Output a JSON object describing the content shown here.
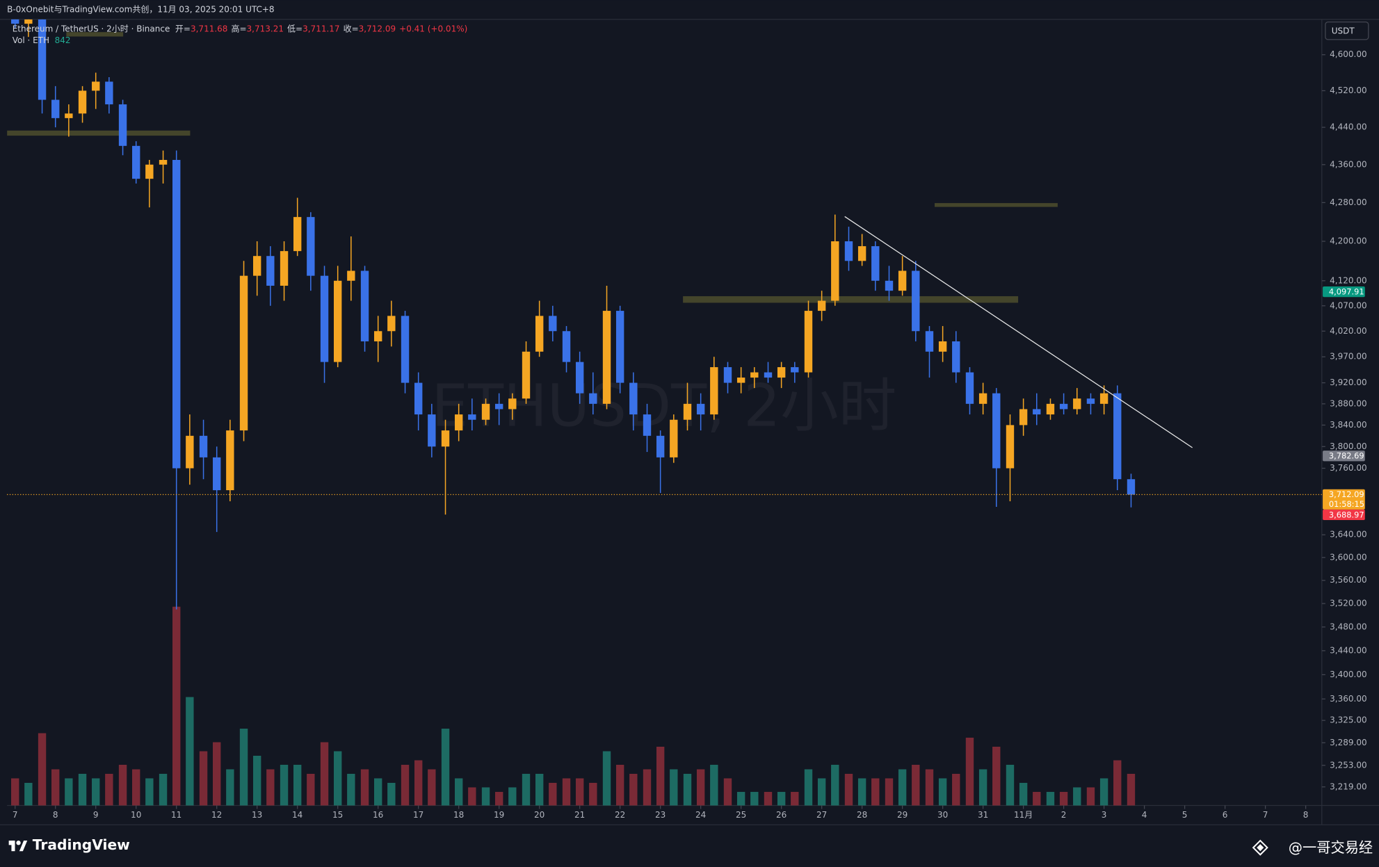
{
  "chart_data": {
    "type": "candlestick",
    "caption": "B-0xOnebit与TradingView.com共创，11月 03, 2025 20:01 UTC+8",
    "title": "Ethereum / TetherUS · 2小时 · Binance",
    "fields": [
      {
        "name": "开=",
        "value": {
          "value": 3711.68,
          "label": "3,711.68"
        }
      },
      {
        "name": "高=",
        "value": {
          "value": 3713.21,
          "label": "3,713.21"
        }
      },
      {
        "name": "低=",
        "value": {
          "value": 3711.17,
          "label": "3,711.17"
        }
      },
      {
        "name": "收=",
        "value": {
          "value": 3712.09,
          "label": "3,712.09"
        }
      }
    ],
    "change": "+0.41 (+0.01%)",
    "volume_title": "Vol · ETH",
    "volume_last": 842,
    "watermark": "ETHUSDT, 2小时",
    "unit": "USDT",
    "log_scale": true,
    "up_color": "#f5a623",
    "down_color": "#3a72e8",
    "volume_up_color": "#1d6b63",
    "volume_down_color": "#7a2a36",
    "xlim": [
      -0.2,
      32.4
    ],
    "ylim": [
      3190,
      4680
    ],
    "xticks": [
      {
        "value": 0,
        "label": "7"
      },
      {
        "value": 1,
        "label": "8"
      },
      {
        "value": 2,
        "label": "9"
      },
      {
        "value": 3,
        "label": "10"
      },
      {
        "value": 4,
        "label": "11"
      },
      {
        "value": 5,
        "label": "12"
      },
      {
        "value": 6,
        "label": "13"
      },
      {
        "value": 7,
        "label": "14"
      },
      {
        "value": 8,
        "label": "15"
      },
      {
        "value": 9,
        "label": "16"
      },
      {
        "value": 10,
        "label": "17"
      },
      {
        "value": 11,
        "label": "18"
      },
      {
        "value": 12,
        "label": "19"
      },
      {
        "value": 13,
        "label": "20"
      },
      {
        "value": 14,
        "label": "21"
      },
      {
        "value": 15,
        "label": "22"
      },
      {
        "value": 16,
        "label": "23"
      },
      {
        "value": 17,
        "label": "24"
      },
      {
        "value": 18,
        "label": "25"
      },
      {
        "value": 19,
        "label": "26"
      },
      {
        "value": 20,
        "label": "27"
      },
      {
        "value": 21,
        "label": "28"
      },
      {
        "value": 22,
        "label": "29"
      },
      {
        "value": 23,
        "label": "30"
      },
      {
        "value": 24,
        "label": "31"
      },
      {
        "value": 25,
        "label": "11月"
      },
      {
        "value": 26,
        "label": "2"
      },
      {
        "value": 27,
        "label": "3"
      },
      {
        "value": 28,
        "label": "4"
      },
      {
        "value": 29,
        "label": "5"
      },
      {
        "value": 30,
        "label": "6"
      },
      {
        "value": 31,
        "label": "7"
      },
      {
        "value": 32,
        "label": "8"
      }
    ],
    "yticks": [
      {
        "value": 4600,
        "label": "4,600.00"
      },
      {
        "value": 4520,
        "label": "4,520.00"
      },
      {
        "value": 4440,
        "label": "4,440.00"
      },
      {
        "value": 4360,
        "label": "4,360.00"
      },
      {
        "value": 4280,
        "label": "4,280.00"
      },
      {
        "value": 4200,
        "label": "4,200.00"
      },
      {
        "value": 4120,
        "label": "4,120.00"
      },
      {
        "value": 4070,
        "label": "4,070.00"
      },
      {
        "value": 4020,
        "label": "4,020.00"
      },
      {
        "value": 3970,
        "label": "3,970.00"
      },
      {
        "value": 3920,
        "label": "3,920.00"
      },
      {
        "value": 3880,
        "label": "3,880.00"
      },
      {
        "value": 3840,
        "label": "3,840.00"
      },
      {
        "value": 3800,
        "label": "3,800.00"
      },
      {
        "value": 3760,
        "label": "3,760.00"
      },
      {
        "value": 3640,
        "label": "3,640.00"
      },
      {
        "value": 3600,
        "label": "3,600.00"
      },
      {
        "value": 3560,
        "label": "3,560.00"
      },
      {
        "value": 3520,
        "label": "3,520.00"
      },
      {
        "value": 3480,
        "label": "3,480.00"
      },
      {
        "value": 3440,
        "label": "3,440.00"
      },
      {
        "value": 3400,
        "label": "3,400.00"
      },
      {
        "value": 3360,
        "label": "3,360.00"
      },
      {
        "value": 3325,
        "label": "3,325.00"
      },
      {
        "value": 3289,
        "label": "3,289.00"
      },
      {
        "value": 3253,
        "label": "3,253.00"
      },
      {
        "value": 3219,
        "label": "3,219.00"
      }
    ],
    "x": [
      0,
      0.33,
      0.67,
      1,
      1.33,
      1.67,
      2,
      2.33,
      2.67,
      3,
      3.33,
      3.67,
      4,
      4.33,
      4.67,
      5,
      5.33,
      5.67,
      6,
      6.33,
      6.67,
      7,
      7.33,
      7.67,
      8,
      8.33,
      8.67,
      9,
      9.33,
      9.67,
      10,
      10.33,
      10.67,
      11,
      11.33,
      11.67,
      12,
      12.33,
      12.67,
      13,
      13.33,
      13.67,
      14,
      14.33,
      14.67,
      15,
      15.33,
      15.67,
      16,
      16.33,
      16.67,
      17,
      17.33,
      17.67,
      18,
      18.33,
      18.67,
      19,
      19.33,
      19.67,
      20,
      20.33,
      20.67,
      21,
      21.33,
      21.67,
      22,
      22.33,
      22.67,
      23,
      23.33,
      23.67,
      24,
      24.33,
      24.67,
      25,
      25.33,
      25.67,
      26,
      26.33,
      26.67,
      27,
      27.33,
      27.67
    ],
    "open": [
      4690,
      4670,
      4680,
      4500,
      4460,
      4470,
      4520,
      4540,
      4490,
      4400,
      4330,
      4360,
      4370,
      3760,
      3820,
      3780,
      3720,
      3830,
      4130,
      4170,
      4110,
      4180,
      4250,
      4130,
      3960,
      4120,
      4140,
      4000,
      4020,
      4050,
      3920,
      3860,
      3800,
      3830,
      3860,
      3850,
      3880,
      3870,
      3890,
      3980,
      4050,
      4020,
      3960,
      3900,
      3880,
      4060,
      3920,
      3860,
      3820,
      3780,
      3850,
      3880,
      3860,
      3950,
      3920,
      3930,
      3940,
      3930,
      3950,
      3940,
      4060,
      4080,
      4200,
      4160,
      4190,
      4120,
      4100,
      4140,
      4020,
      3980,
      4000,
      3940,
      3880,
      3900,
      3760,
      3840,
      3870,
      3860,
      3880,
      3870,
      3890,
      3880,
      3900,
      3740
    ],
    "high": [
      4720,
      4700,
      4690,
      4530,
      4490,
      4530,
      4560,
      4550,
      4500,
      4410,
      4370,
      4390,
      4390,
      3860,
      3850,
      3800,
      3850,
      4160,
      4200,
      4190,
      4200,
      4290,
      4260,
      4150,
      4150,
      4210,
      4150,
      4050,
      4080,
      4060,
      3940,
      3880,
      3850,
      3880,
      3890,
      3890,
      3900,
      3900,
      4000,
      4080,
      4070,
      4030,
      3980,
      3940,
      4110,
      4070,
      3940,
      3880,
      3830,
      3860,
      3920,
      3900,
      3970,
      3960,
      3950,
      3950,
      3960,
      3960,
      3960,
      4080,
      4100,
      4255,
      4230,
      4215,
      4200,
      4150,
      4170,
      4160,
      4030,
      4030,
      4020,
      3950,
      3920,
      3910,
      3860,
      3890,
      3900,
      3890,
      3900,
      3910,
      3900,
      3915,
      3915,
      3750
    ],
    "low": [
      4660,
      4640,
      4470,
      4440,
      4420,
      4450,
      4480,
      4470,
      4380,
      4320,
      4270,
      4320,
      3510,
      3730,
      3740,
      3645,
      3700,
      3810,
      4090,
      4070,
      4080,
      4170,
      4100,
      3920,
      3950,
      4080,
      3980,
      3960,
      3990,
      3900,
      3830,
      3780,
      3676,
      3810,
      3830,
      3840,
      3840,
      3850,
      3880,
      3970,
      4000,
      3940,
      3880,
      3860,
      3870,
      3900,
      3830,
      3790,
      3715,
      3770,
      3830,
      3830,
      3850,
      3900,
      3900,
      3910,
      3920,
      3910,
      3920,
      3930,
      4040,
      4070,
      4140,
      4150,
      4100,
      4080,
      4090,
      4000,
      3930,
      3960,
      3920,
      3860,
      3860,
      3690,
      3700,
      3820,
      3840,
      3850,
      3860,
      3860,
      3860,
      3860,
      3720,
      3688.97
    ],
    "close": [
      4670,
      4680,
      4500,
      4460,
      4470,
      4520,
      4540,
      4490,
      4400,
      4330,
      4360,
      4370,
      3760,
      3820,
      3780,
      3720,
      3830,
      4130,
      4170,
      4110,
      4180,
      4250,
      4130,
      3960,
      4120,
      4140,
      4000,
      4020,
      4050,
      3920,
      3860,
      3800,
      3830,
      3860,
      3850,
      3880,
      3870,
      3890,
      3980,
      4050,
      4020,
      3960,
      3900,
      3880,
      4060,
      3920,
      3860,
      3820,
      3780,
      3850,
      3880,
      3860,
      3950,
      3920,
      3930,
      3940,
      3930,
      3950,
      3940,
      4060,
      4080,
      4200,
      4160,
      4190,
      4120,
      4100,
      4140,
      4020,
      3980,
      4000,
      3940,
      3880,
      3900,
      3760,
      3840,
      3870,
      3860,
      3880,
      3870,
      3890,
      3880,
      3900,
      3740,
      3712.09
    ],
    "volume": [
      30000,
      25000,
      80000,
      40000,
      30000,
      35000,
      30000,
      35000,
      45000,
      40000,
      30000,
      35000,
      220000,
      120000,
      60000,
      70000,
      40000,
      85000,
      55000,
      40000,
      45000,
      45000,
      35000,
      70000,
      60000,
      35000,
      40000,
      30000,
      25000,
      45000,
      50000,
      40000,
      85000,
      30000,
      20000,
      20000,
      15000,
      20000,
      35000,
      35000,
      25000,
      30000,
      30000,
      25000,
      60000,
      45000,
      35000,
      40000,
      65000,
      40000,
      35000,
      40000,
      45000,
      30000,
      15000,
      15000,
      15000,
      15000,
      15000,
      40000,
      30000,
      45000,
      35000,
      30000,
      30000,
      30000,
      40000,
      45000,
      40000,
      30000,
      35000,
      75000,
      40000,
      65000,
      45000,
      25000,
      15000,
      15000,
      15000,
      20000,
      20000,
      30000,
      50000,
      35000
    ],
    "zones": [
      {
        "x": [
          1.27,
          2.68
        ],
        "y": [
          4641,
          4651
        ]
      },
      {
        "x": [
          -0.2,
          4.34
        ],
        "y": [
          4422,
          4433
        ]
      },
      {
        "x": [
          22.8,
          25.85
        ],
        "y": [
          4271,
          4279
        ]
      },
      {
        "x": [
          16.56,
          24.87
        ],
        "y": [
          4076,
          4089
        ]
      }
    ],
    "zone_color": "#4a4a2c",
    "trendline": {
      "x": [
        20.57,
        29.19
      ],
      "y": [
        4251,
        3798
      ],
      "color": "#e8e8e8"
    },
    "price_tags": [
      {
        "value": 4097.91,
        "label": "4,097.91",
        "color": "#089981"
      },
      {
        "value": 3782.69,
        "label": "3,782.69",
        "color": "#787b86"
      },
      {
        "value": 3712.09,
        "label": "3,712.09",
        "color": "#f5a623",
        "countdown": "01:58:15"
      },
      {
        "value": 3688.97,
        "label": "3,688.97",
        "color": "#f23645"
      }
    ]
  },
  "footer": {
    "brand": "TradingView",
    "credit": "@一哥交易经"
  }
}
